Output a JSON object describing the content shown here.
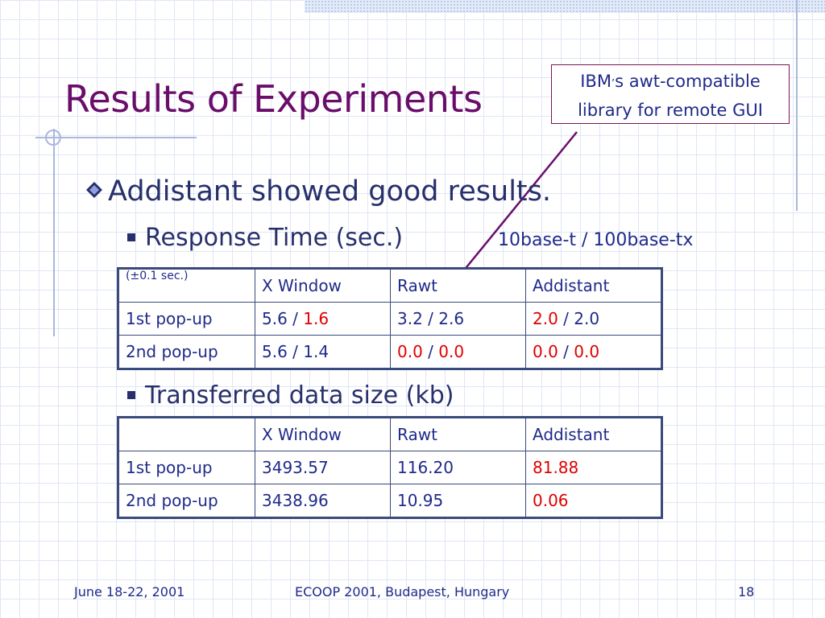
{
  "slide": {
    "title": "Results of Experiments",
    "callout": {
      "line1_prefix": "IBM",
      "line1_apostrophe": "’",
      "line1_suffix": "s awt-compatible",
      "line2": "library for remote GUI"
    },
    "bullet_main": "Addistant showed good results.",
    "sub_response": "Response Time (sec.)",
    "speed_note": "10base-t / 100base-tx",
    "sub_transfer": "Transferred data size (kb)"
  },
  "response_table": {
    "header": {
      "corner": "(±0.1 sec.)",
      "col1": "X Window",
      "col2": "Rawt",
      "col3": "Addistant"
    },
    "rows": [
      {
        "label": "1st pop-up",
        "xw_a": "5.6",
        "xw_b": "1.6",
        "rawt_a": "3.2",
        "rawt_b": "2.6",
        "add_a": "2.0",
        "add_b": "2.0"
      },
      {
        "label": "2nd pop-up",
        "xw_a": "5.6",
        "xw_b": "1.4",
        "rawt_a": "0.0",
        "rawt_b": "0.0",
        "add_a": "0.0",
        "add_b": "0.0"
      }
    ],
    "separator": " / "
  },
  "transfer_table": {
    "header": {
      "corner": "",
      "col1": "X Window",
      "col2": "Rawt",
      "col3": "Addistant"
    },
    "rows": [
      {
        "label": "1st pop-up",
        "xw": "3493.57",
        "rawt": "116.20",
        "add": "81.88"
      },
      {
        "label": "2nd pop-up",
        "xw": "3438.96",
        "rawt": "10.95",
        "add": "0.06"
      }
    ]
  },
  "footer": {
    "date": "June 18-22, 2001",
    "venue": "ECOOP 2001, Budapest, Hungary",
    "page": "18"
  },
  "colors": {
    "title": "#6a0d6a",
    "text": "#1f2a8a",
    "highlight": "#e00000",
    "arrow": "#6a0d6a"
  }
}
